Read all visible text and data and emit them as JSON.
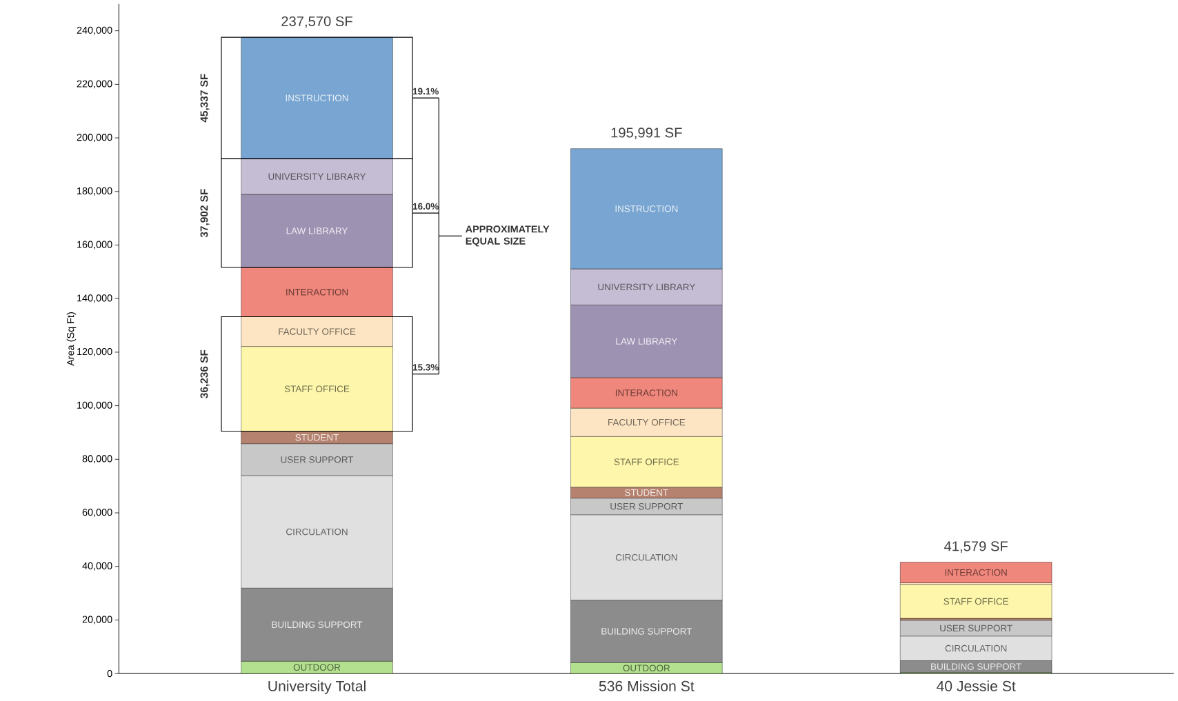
{
  "chart_data": {
    "type": "bar",
    "stacked": true,
    "ylabel": "Area (Sq Ft)",
    "categories": [
      "University Total",
      "536 Mission St",
      "40 Jessie St"
    ],
    "ylim": [
      0,
      250000
    ],
    "yticks": [
      0,
      {
        "value": 20000,
        "label": "20,000"
      },
      {
        "value": 40000,
        "label": "40,000"
      },
      {
        "value": 60000,
        "label": "60,000"
      },
      {
        "value": 80000,
        "label": "80,000"
      },
      {
        "value": 100000,
        "label": "100,000"
      },
      {
        "value": 120000,
        "label": "120,000"
      },
      {
        "value": 140000,
        "label": "140,000"
      },
      {
        "value": 160000,
        "label": "160,000"
      },
      {
        "value": 180000,
        "label": "180,000"
      },
      {
        "value": 200000,
        "label": "200,000"
      },
      {
        "value": 220000,
        "label": "220,000"
      },
      {
        "value": 240000,
        "label": "240,000"
      }
    ],
    "totals": [
      "237,570 SF",
      "195,991 SF",
      "41,579 SF"
    ],
    "series": [
      {
        "name": "OUTDOOR",
        "color": "#b3e08e",
        "values": [
          4600,
          4100,
          400
        ]
      },
      {
        "name": "BUILDING SUPPORT",
        "color": "#8c8c8c",
        "values": [
          27300,
          23300,
          4400
        ]
      },
      {
        "name": "CIRCULATION",
        "color": "#e0e0e0",
        "values": [
          42033,
          31900,
          9200
        ]
      },
      {
        "name": "USER SUPPORT",
        "color": "#c8c8c8",
        "values": [
          11900,
          6200,
          5900
        ]
      },
      {
        "name": "STUDENT",
        "color": "#b5826f",
        "values": [
          4600,
          4100,
          700
        ]
      },
      {
        "name": "STAFF OFFICE",
        "color": "#fdf6ab",
        "values": [
          31700,
          18900,
          12679
        ]
      },
      {
        "name": "FACULTY OFFICE",
        "color": "#fde5c3",
        "values": [
          11100,
          10600,
          600
        ]
      },
      {
        "name": "INTERACTION",
        "color": "#f0877c",
        "values": [
          18400,
          11400,
          7700
        ]
      },
      {
        "name": "LAW LIBRARY",
        "color": "#9e92b3",
        "values": [
          27300,
          27100,
          null
        ]
      },
      {
        "name": "UNIVERSITY LIBRARY",
        "color": "#c5bdd3",
        "values": [
          13300,
          13500,
          null
        ]
      },
      {
        "name": "INSTRUCTION",
        "color": "#78a5d1",
        "values": [
          45337,
          44891,
          null
        ]
      }
    ],
    "annotations": [
      "45,337 SF",
      "37,902 SF",
      "36,236 SF",
      "19.1%",
      "16.0%",
      "15.3%",
      "APPROXIMATELY EQUAL SIZE"
    ]
  }
}
